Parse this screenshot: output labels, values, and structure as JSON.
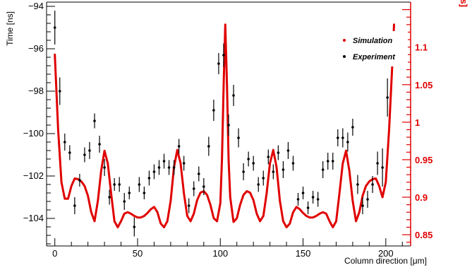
{
  "chart_data": {
    "type": "scatter",
    "xlabel": "Column direction [μm]",
    "ylabel": "Time [ns]",
    "y2label": "charge collection time [ns]",
    "xlim": [
      -5,
      215
    ],
    "ylim": [
      -105.3,
      -93.8
    ],
    "y2lim": [
      0.835,
      1.16
    ],
    "xticks": [
      0,
      50,
      100,
      150,
      200
    ],
    "yticks": [
      -104,
      -102,
      -100,
      -98,
      -96,
      -94
    ],
    "y2ticks": [
      0.85,
      0.9,
      0.95,
      1,
      1.05,
      1.1
    ],
    "grid": false,
    "legend": {
      "position": "top-right",
      "entries": [
        "Simulation",
        "Experiment"
      ]
    },
    "colors": {
      "simulation": "#e00000",
      "experiment": "#000000",
      "right_axis": "#e00000"
    },
    "series": [
      {
        "name": "Experiment",
        "axis": "left",
        "x": [
          0,
          3,
          6,
          9,
          12,
          15,
          18,
          21,
          24,
          27,
          30,
          33,
          36,
          39,
          42,
          45,
          48,
          51,
          54,
          57,
          60,
          63,
          66,
          69,
          72,
          75,
          78,
          81,
          84,
          87,
          90,
          93,
          96,
          99,
          102,
          105,
          108,
          111,
          114,
          117,
          120,
          123,
          126,
          129,
          132,
          135,
          138,
          141,
          144,
          147,
          150,
          153,
          156,
          159,
          162,
          165,
          168,
          171,
          174,
          177,
          180,
          183,
          186,
          189,
          192,
          195,
          198,
          201
        ],
        "y": [
          -95,
          -98,
          -100.4,
          -100.9,
          -103.4,
          -102.2,
          -101,
          -100.8,
          -99.4,
          -100.5,
          -101.6,
          -103,
          -102.4,
          -102.4,
          -103.2,
          -102.8,
          -104.4,
          -102.4,
          -102.8,
          -102.1,
          -101.8,
          -101.6,
          -101.3,
          -101.6,
          -101.6,
          -100.6,
          -101.4,
          -103.4,
          -102.6,
          -101.9,
          -102.5,
          -100.6,
          -98.9,
          -96.7,
          -96.3,
          -99.6,
          -98.2,
          -100.2,
          -101.8,
          -101.2,
          -101.4,
          -102.4,
          -102.1,
          -101.1,
          -101.8,
          -100.9,
          -101.7,
          -100.8,
          -101.4,
          -103.1,
          -102.8,
          -103.5,
          -103,
          -103.1,
          -101.7,
          -101.3,
          -101.3,
          -100.2,
          -100.2,
          -100.4,
          -99.7,
          -102.4,
          -103.4,
          -103.1,
          -102.4,
          -101.4,
          -101.6,
          -98.3
        ],
        "err": [
          0.8,
          0.65,
          0.4,
          0.35,
          0.4,
          0.3,
          0.35,
          0.4,
          0.35,
          0.4,
          0.4,
          0.35,
          0.3,
          0.35,
          0.4,
          0.3,
          0.45,
          0.35,
          0.3,
          0.35,
          0.35,
          0.35,
          0.35,
          0.35,
          0.35,
          0.35,
          0.35,
          0.35,
          0.35,
          0.35,
          0.4,
          0.45,
          0.5,
          0.5,
          0.55,
          0.5,
          0.5,
          0.45,
          0.4,
          0.35,
          0.35,
          0.35,
          0.35,
          0.35,
          0.35,
          0.35,
          0.4,
          0.4,
          0.35,
          0.3,
          0.3,
          0.3,
          0.3,
          0.35,
          0.4,
          0.4,
          0.4,
          0.4,
          0.45,
          0.45,
          0.4,
          0.45,
          0.4,
          0.4,
          0.4,
          0.55,
          0.9,
          0.9
        ]
      },
      {
        "name": "Simulation",
        "axis": "right",
        "x": [
          0,
          2,
          4,
          6,
          8,
          10,
          12,
          14,
          16,
          18,
          20,
          22,
          24,
          26,
          28,
          30,
          32,
          34,
          36,
          38,
          40,
          42,
          44,
          46,
          48,
          50,
          52,
          54,
          56,
          58,
          60,
          62,
          64,
          66,
          68,
          70,
          72,
          74,
          76,
          78,
          80,
          82,
          84,
          86,
          88,
          90,
          92,
          94,
          96,
          98,
          100,
          101,
          102,
          103,
          104,
          105,
          106,
          108,
          110,
          112,
          114,
          116,
          118,
          120,
          122,
          124,
          126,
          128,
          130,
          132,
          134,
          136,
          138,
          140,
          142,
          144,
          146,
          148,
          150,
          152,
          154,
          156,
          158,
          160,
          162,
          164,
          166,
          168,
          170,
          172,
          174,
          176,
          178,
          180,
          182,
          184,
          186,
          188,
          190,
          192,
          194,
          196,
          198,
          200,
          202,
          204,
          205
        ],
        "y": [
          1.09,
          0.99,
          0.92,
          0.898,
          0.898,
          0.915,
          0.925,
          0.924,
          0.921,
          0.915,
          0.902,
          0.88,
          0.868,
          0.895,
          0.935,
          0.962,
          0.945,
          0.905,
          0.868,
          0.86,
          0.868,
          0.878,
          0.88,
          0.878,
          0.875,
          0.873,
          0.873,
          0.875,
          0.879,
          0.884,
          0.887,
          0.88,
          0.865,
          0.86,
          0.868,
          0.895,
          0.94,
          0.963,
          0.945,
          0.905,
          0.875,
          0.868,
          0.878,
          0.896,
          0.906,
          0.908,
          0.903,
          0.89,
          0.872,
          0.868,
          0.892,
          0.95,
          1.05,
          1.13,
          1.05,
          0.95,
          0.9,
          0.867,
          0.872,
          0.89,
          0.903,
          0.908,
          0.906,
          0.896,
          0.878,
          0.868,
          0.875,
          0.905,
          0.945,
          0.963,
          0.94,
          0.895,
          0.868,
          0.86,
          0.865,
          0.88,
          0.887,
          0.884,
          0.879,
          0.875,
          0.873,
          0.873,
          0.875,
          0.878,
          0.88,
          0.878,
          0.868,
          0.86,
          0.868,
          0.905,
          0.945,
          0.962,
          0.935,
          0.895,
          0.868,
          0.88,
          0.902,
          0.915,
          0.921,
          0.924,
          0.925,
          0.915,
          0.9,
          0.92,
          0.99,
          1.08,
          1.13
        ]
      }
    ]
  }
}
